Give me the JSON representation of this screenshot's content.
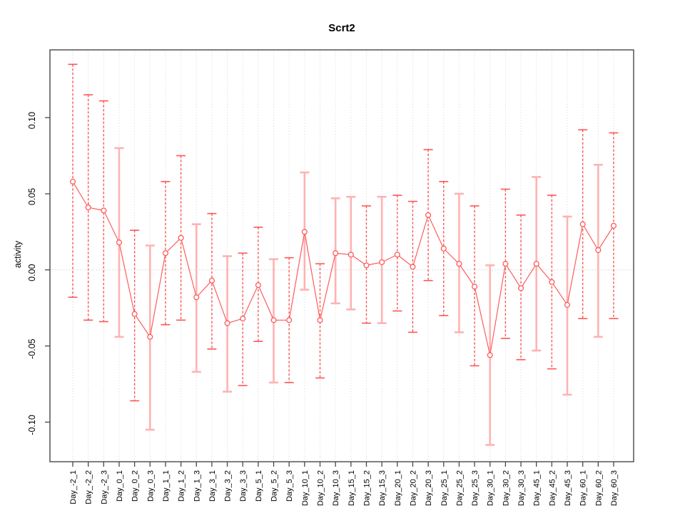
{
  "figure": {
    "title": "Scrt2",
    "ylabel": "activity"
  },
  "chart_data": {
    "type": "scatter",
    "title": "Scrt2",
    "xlabel": "",
    "ylabel": "activity",
    "legend": "none",
    "grid": "vertical-dotted",
    "zero_line": true,
    "categories": [
      "Day_-2_1",
      "Day_-2_2",
      "Day_-2_3",
      "Day_0_1",
      "Day_0_2",
      "Day_0_3",
      "Day_1_1",
      "Day_1_2",
      "Day_1_3",
      "Day_3_1",
      "Day_3_2",
      "Day_3_3",
      "Day_5_1",
      "Day_5_2",
      "Day_5_3",
      "Day_10_1",
      "Day_10_2",
      "Day_10_3",
      "Day_15_1",
      "Day_15_2",
      "Day_15_3",
      "Day_20_1",
      "Day_20_2",
      "Day_20_3",
      "Day_25_1",
      "Day_25_2",
      "Day_25_3",
      "Day_30_1",
      "Day_30_2",
      "Day_30_3",
      "Day_45_1",
      "Day_45_2",
      "Day_45_3",
      "Day_60_1",
      "Day_60_2",
      "Day_60_3"
    ],
    "series": [
      {
        "name": "activity",
        "values": [
          0.058,
          0.041,
          0.039,
          0.018,
          -0.029,
          -0.044,
          0.011,
          0.021,
          -0.018,
          -0.007,
          -0.035,
          -0.032,
          -0.01,
          -0.033,
          -0.033,
          0.025,
          -0.033,
          0.011,
          0.01,
          0.003,
          0.005,
          0.01,
          0.002,
          0.036,
          0.014,
          0.004,
          -0.011,
          -0.056,
          0.004,
          -0.012,
          0.004,
          -0.008,
          -0.023,
          0.03,
          0.013,
          0.029
        ],
        "upper": [
          0.135,
          0.115,
          0.111,
          0.08,
          0.026,
          0.016,
          0.058,
          0.075,
          0.03,
          0.037,
          0.009,
          0.011,
          0.028,
          0.007,
          0.008,
          0.064,
          0.004,
          0.047,
          0.048,
          0.042,
          0.048,
          0.049,
          0.045,
          0.079,
          0.058,
          0.05,
          0.042,
          0.003,
          0.053,
          0.036,
          0.061,
          0.049,
          0.035,
          0.092,
          0.069,
          0.09
        ],
        "lower": [
          -0.018,
          -0.033,
          -0.034,
          -0.044,
          -0.086,
          -0.105,
          -0.036,
          -0.033,
          -0.067,
          -0.052,
          -0.08,
          -0.076,
          -0.047,
          -0.074,
          -0.074,
          -0.013,
          -0.071,
          -0.022,
          -0.026,
          -0.035,
          -0.035,
          -0.027,
          -0.041,
          -0.007,
          -0.03,
          -0.041,
          -0.063,
          -0.115,
          -0.045,
          -0.059,
          -0.053,
          -0.065,
          -0.082,
          -0.032,
          -0.044,
          -0.032
        ],
        "bar_styles": [
          "dashed",
          "dashed",
          "dashed",
          "solid",
          "dashed",
          "solid",
          "dashed",
          "dashed",
          "solid",
          "dashed",
          "solid",
          "dashed",
          "dashed",
          "solid",
          "dashed",
          "solid",
          "dashed",
          "solid",
          "solid",
          "dashed",
          "solid",
          "dashed",
          "dashed",
          "dashed",
          "dashed",
          "solid",
          "dashed",
          "solid",
          "dashed",
          "dashed",
          "solid",
          "dashed",
          "solid",
          "dashed",
          "solid",
          "dashed"
        ]
      }
    ],
    "ylim": [
      -0.126,
      0.1445
    ],
    "yticks": [
      -0.1,
      -0.05,
      0.0,
      0.05,
      0.1
    ],
    "ytick_labels": [
      "-0.10",
      "-0.05",
      "0.00",
      "0.05",
      "0.10"
    ],
    "colors": {
      "point": "#ff5555",
      "line": "#ff5555",
      "bar_dashed": "#ff5555",
      "bar_solid": "#ffb2b2",
      "grid": "#d9d9d9",
      "zero": "#c8c8c8",
      "axis": "#474747",
      "text": "#000000"
    }
  }
}
